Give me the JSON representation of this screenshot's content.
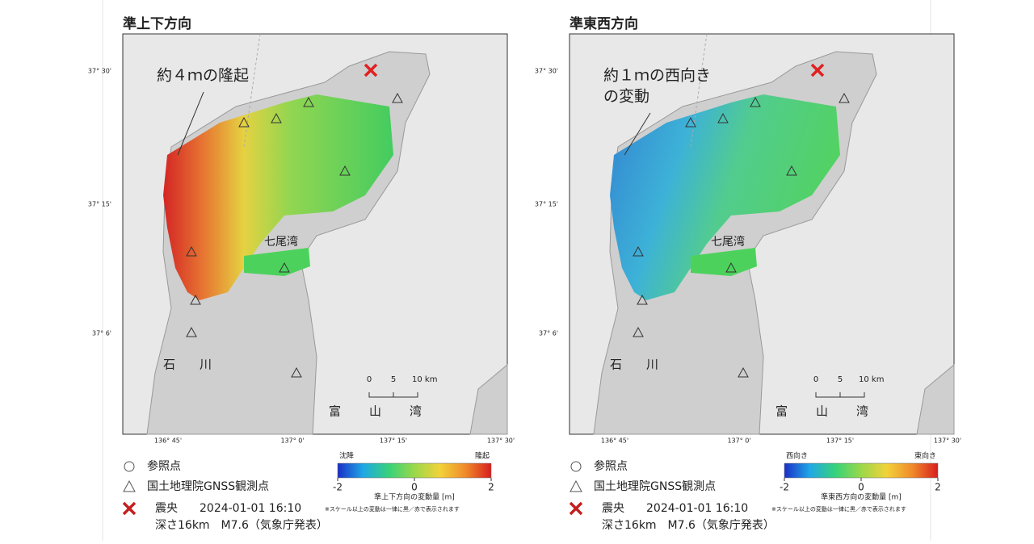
{
  "panels": [
    {
      "title": "準上下方向",
      "annotation": [
        "約４ｍの隆起"
      ],
      "lat_labels": [
        "37° 30'",
        "37° 15'",
        "37° 6'"
      ],
      "lon_labels": [
        "136° 45'",
        "137° 0'",
        "137° 15'",
        "137° 30'"
      ],
      "places": [
        "七尾湾",
        "石",
        "川",
        "富",
        "山",
        "湾"
      ],
      "scale": [
        "0",
        "5",
        "10 km"
      ],
      "legend": {
        "reference": "参照点",
        "gnss": "国土地理院GNSS観測点",
        "epicenter": "震央",
        "datetime": "2024-01-01 16:10",
        "depth": "深さ16km　M7.6（気象庁発表）"
      },
      "colorbar": {
        "low_label": "沈降",
        "high_label": "隆起",
        "min": -2,
        "max": 2,
        "ticks": [
          -2,
          0,
          2
        ],
        "caption": "準上下方向の変動量 [m]",
        "note": "※スケール以上の変動は一律に黒／赤で表示されます",
        "colors": [
          "#1a2fc8",
          "#1fa8e6",
          "#37d27a",
          "#9ad84a",
          "#f2d23a",
          "#f08a2a",
          "#d81e1e"
        ]
      }
    },
    {
      "title": "準東西方向",
      "annotation": [
        "約１ｍの西向き",
        "の変動"
      ],
      "lat_labels": [
        "37° 30'",
        "37° 15'",
        "37° 6'"
      ],
      "lon_labels": [
        "136° 45'",
        "137° 0'",
        "137° 15'",
        "137° 30'"
      ],
      "places": [
        "七尾湾",
        "石",
        "川",
        "富",
        "山",
        "湾"
      ],
      "scale": [
        "0",
        "5",
        "10 km"
      ],
      "legend": {
        "reference": "参照点",
        "gnss": "国土地理院GNSS観測点",
        "epicenter": "震央",
        "datetime": "2024-01-01 16:10",
        "depth": "深さ16km　M7.6（気象庁発表）"
      },
      "colorbar": {
        "low_label": "西向き",
        "high_label": "東向き",
        "min": -2,
        "max": 2,
        "ticks": [
          -2,
          0,
          2
        ],
        "caption": "準東西方向の変動量 [m]",
        "note": "※スケール以上の変動は一律に黒／赤で表示されます",
        "colors": [
          "#1a2fc8",
          "#1fa8e6",
          "#37d27a",
          "#9ad84a",
          "#f2d23a",
          "#f08a2a",
          "#d81e1e"
        ]
      }
    }
  ]
}
